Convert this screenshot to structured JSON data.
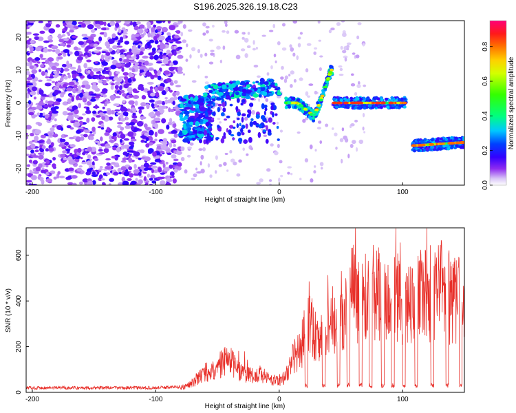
{
  "title": "S196.2025.326.19.18.C23",
  "chart_data": [
    {
      "type": "heatmap",
      "title": "S196.2025.326.19.18.C23",
      "xlabel": "Height of straight line (km)",
      "ylabel": "Frequency (Hz)",
      "xlim": [
        -205,
        150
      ],
      "ylim": [
        -25,
        25
      ],
      "xticks": [
        "-200",
        "-100",
        "0",
        "100"
      ],
      "xtick_values": [
        -200,
        -100,
        0,
        100
      ],
      "yticks": [
        "20",
        "10",
        "0",
        "-10",
        "-20"
      ],
      "ytick_values": [
        20,
        10,
        0,
        -10,
        -20
      ],
      "colorbar": {
        "label": "Normalized spectral amplitude",
        "range": [
          0,
          0.95
        ],
        "ticks": [
          "0.0",
          "0.2",
          "0.4",
          "0.6",
          "0.8"
        ],
        "tick_values": [
          0,
          0.2,
          0.4,
          0.6,
          0.8
        ]
      },
      "features": [
        {
          "name": "noise field",
          "x_range": [
            -205,
            -80
          ],
          "freq_range": [
            -25,
            25
          ],
          "amplitude": 0.1
        },
        {
          "name": "scattered cluster",
          "x_range": [
            -80,
            -55
          ],
          "freq_center": -5,
          "amplitude": 0.25
        },
        {
          "name": "segment",
          "x_range": [
            -60,
            0
          ],
          "freq_start": 3,
          "freq_end": 5,
          "amplitude": 0.25
        },
        {
          "name": "band",
          "x_range": [
            5,
            43
          ],
          "freq_path": [
            [
              5,
              0
            ],
            [
              15,
              0
            ],
            [
              28,
              -4
            ],
            [
              33,
              0
            ],
            [
              42,
              10
            ]
          ],
          "amplitude": 0.6
        },
        {
          "name": "band",
          "x_range": [
            44,
            103
          ],
          "freq_center": 0,
          "amplitude": 0.75
        },
        {
          "name": "band",
          "x_range": [
            108,
            150
          ],
          "freq_start": -13,
          "freq_end": -12,
          "amplitude": 0.7
        }
      ]
    },
    {
      "type": "line",
      "xlabel": "Height of straight line (km)",
      "ylabel": "SNR (10 * v/v)",
      "xlim": [
        -205,
        150
      ],
      "ylim": [
        0,
        720
      ],
      "xticks": [
        "-200",
        "-100",
        "0",
        "100"
      ],
      "xtick_values": [
        -200,
        -100,
        0,
        100
      ],
      "yticks": [
        "0",
        "200",
        "400",
        "600"
      ],
      "ytick_values": [
        0,
        200,
        400,
        600
      ],
      "series": [
        {
          "name": "SNR",
          "color": "#e8302a",
          "x": [
            -205,
            -180,
            -160,
            -140,
            -120,
            -100,
            -90,
            -80,
            -75,
            -70,
            -65,
            -60,
            -55,
            -50,
            -45,
            -40,
            -35,
            -30,
            -25,
            -20,
            -15,
            -10,
            -5,
            0,
            5,
            10,
            15,
            20,
            25,
            30,
            35,
            40,
            45,
            50,
            55,
            60,
            65,
            70,
            75,
            80,
            85,
            90,
            95,
            100,
            105,
            110,
            115,
            120,
            125,
            130,
            135,
            140,
            145,
            150
          ],
          "values": [
            20,
            20,
            20,
            20,
            20,
            20,
            22,
            25,
            30,
            50,
            70,
            100,
            90,
            130,
            150,
            160,
            110,
            100,
            90,
            80,
            90,
            70,
            60,
            50,
            80,
            150,
            200,
            250,
            380,
            250,
            260,
            300,
            320,
            400,
            420,
            480,
            460,
            450,
            480,
            490,
            470,
            450,
            460,
            430,
            440,
            450,
            470,
            460,
            470,
            500,
            480,
            450,
            470,
            520
          ]
        }
      ]
    }
  ]
}
